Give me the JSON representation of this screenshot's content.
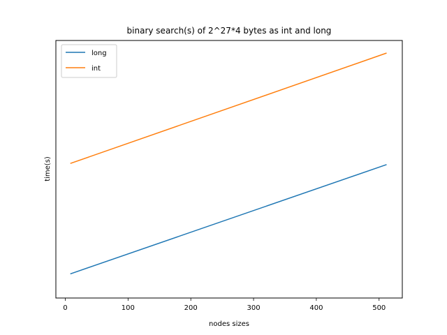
{
  "chart_data": {
    "type": "line",
    "title": "binary search(s) of 2^27*4 bytes as int and long",
    "xlabel": "nodes sizes",
    "ylabel": "time(s)",
    "xlim": [
      -15,
      537
    ],
    "ylim": [
      0,
      1
    ],
    "xticks": [
      0,
      100,
      200,
      300,
      400,
      500
    ],
    "yticks": [],
    "grid": false,
    "legend_position": "top-left",
    "series": [
      {
        "name": "long",
        "color": "#1f77b4",
        "x": [
          8,
          512
        ],
        "y": [
          0.05,
          0.52
        ]
      },
      {
        "name": "int",
        "color": "#ff7f0e",
        "x": [
          8,
          512
        ],
        "y": [
          0.525,
          1.0
        ]
      }
    ]
  }
}
